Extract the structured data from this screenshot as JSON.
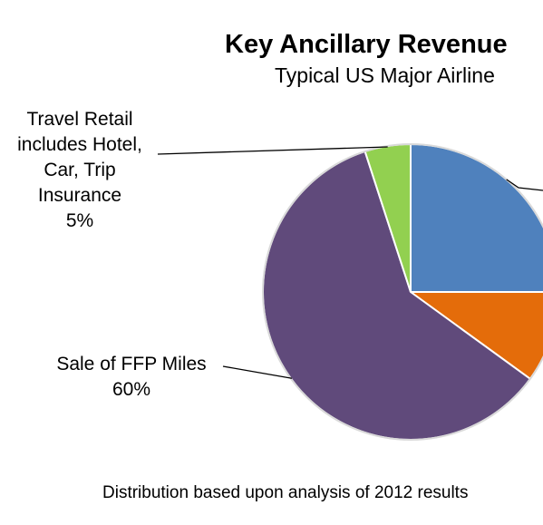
{
  "chart_data": {
    "type": "pie",
    "title": "Key Ancillary Revenue",
    "subtitle": "Typical US Major Airline",
    "slices": [
      {
        "label": "",
        "value": 25,
        "color": "#4f81bd"
      },
      {
        "label": "",
        "value": 10,
        "color": "#e46c0a"
      },
      {
        "label": "Sale of FFP Miles",
        "value": 60,
        "value_label": "60%",
        "color": "#604a7b"
      },
      {
        "label": "Travel Retail includes Hotel, Car, Trip Insurance",
        "value": 5,
        "value_label": "5%",
        "color": "#92d050"
      }
    ],
    "labels": {
      "retail_lines": [
        "Travel Retail",
        "includes Hotel,",
        "Car, Trip",
        "Insurance",
        "5%"
      ],
      "ffp_lines": [
        "Sale of FFP Miles",
        "60%"
      ]
    },
    "footnote": "Distribution based upon analysis of 2012 results"
  }
}
